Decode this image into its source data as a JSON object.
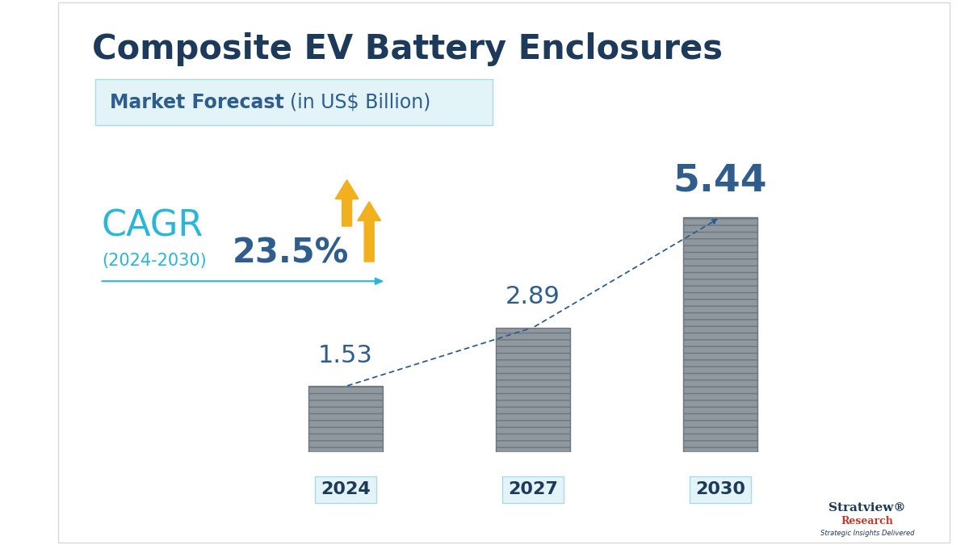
{
  "chart_data": {
    "type": "bar",
    "title": "Composite EV Battery Enclosures",
    "subtitle": "Market Forecast",
    "unit": "(in US$ Billion)",
    "categories": [
      "2024",
      "2027",
      "2030"
    ],
    "values": [
      1.53,
      2.89,
      5.44
    ],
    "color": "#8f989f",
    "data_labels": true,
    "tick_labels": "x",
    "annotations": {
      "cagr": "CAGR",
      "cagr_period": "(2024-2030)",
      "cagr_value": "23.5%",
      "brand": "Stratview®",
      "brand_sub": "Research",
      "tagline": "Strategic Insights Delivered"
    }
  }
}
